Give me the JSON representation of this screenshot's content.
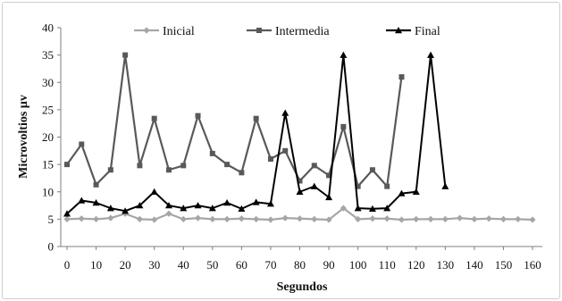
{
  "chart_data": {
    "type": "line",
    "title": "",
    "xlabel": "Segundos",
    "ylabel": "Microvoltios µv",
    "xlim": [
      0,
      160
    ],
    "ylim": [
      0,
      40
    ],
    "x_ticks": [
      "0",
      "10",
      "20",
      "30",
      "40",
      "50",
      "60",
      "70",
      "80",
      "90",
      "100",
      "110",
      "120",
      "130",
      "140",
      "150",
      "160"
    ],
    "y_ticks": [
      "0",
      "5",
      "10",
      "15",
      "20",
      "25",
      "30",
      "35",
      "40"
    ],
    "grid": false,
    "legend_position": "top",
    "series": [
      {
        "name": "Inicial",
        "color": "#a6a6a6",
        "marker": "diamond",
        "x": [
          0,
          5,
          10,
          15,
          20,
          25,
          30,
          35,
          40,
          45,
          50,
          55,
          60,
          65,
          70,
          75,
          80,
          85,
          90,
          95,
          100,
          105,
          110,
          115,
          120,
          125,
          130,
          135,
          140,
          145,
          150,
          155,
          160
        ],
        "y": [
          5,
          5.1,
          5,
          5.2,
          6,
          5,
          4.9,
          6,
          5,
          5.2,
          5,
          5,
          5.1,
          5,
          4.9,
          5.2,
          5.1,
          5,
          4.9,
          7,
          5,
          5.1,
          5.1,
          4.9,
          5,
          5,
          5,
          5.2,
          5,
          5.1,
          5,
          5,
          4.9
        ]
      },
      {
        "name": "Intermedia",
        "color": "#595959",
        "marker": "square",
        "x": [
          0,
          5,
          10,
          15,
          20,
          25,
          30,
          35,
          40,
          45,
          50,
          55,
          60,
          65,
          70,
          75,
          80,
          85,
          90,
          95,
          100,
          105,
          110,
          115
        ],
        "y": [
          15,
          18.7,
          11.3,
          14,
          35,
          14.8,
          23.4,
          14,
          14.8,
          23.9,
          17,
          15,
          13.5,
          23.4,
          16,
          17.5,
          12,
          14.8,
          13,
          21.9,
          11,
          14,
          11,
          31
        ]
      },
      {
        "name": "Final",
        "color": "#000000",
        "marker": "triangle",
        "x": [
          0,
          5,
          10,
          15,
          20,
          25,
          30,
          35,
          40,
          45,
          50,
          55,
          60,
          65,
          70,
          75,
          80,
          85,
          90,
          95,
          100,
          105,
          110,
          115,
          120,
          125,
          130
        ],
        "y": [
          6,
          8.4,
          8,
          7,
          6.5,
          7.5,
          10,
          7.5,
          7,
          7.5,
          7,
          8,
          6.9,
          8.1,
          7.8,
          24.4,
          10,
          11,
          9,
          35,
          7,
          6.9,
          7,
          9.7,
          10,
          35,
          11
        ]
      }
    ]
  }
}
